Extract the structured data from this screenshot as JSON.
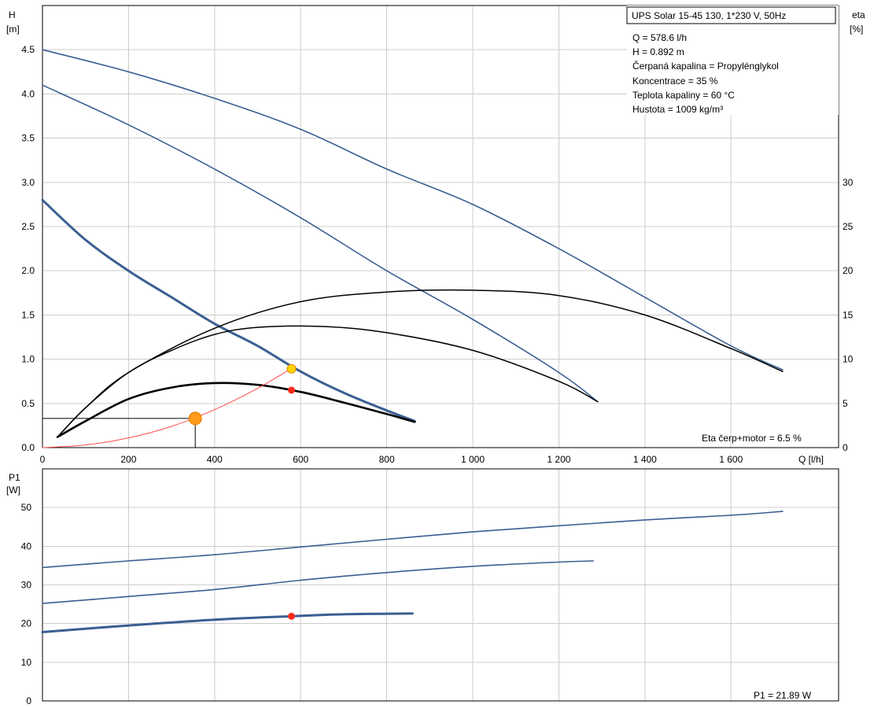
{
  "legend_box": {
    "title": "UPS Solar 15-45 130, 1*230 V, 50Hz",
    "lines": [
      "Q = 578.6 l/h",
      "H = 0.892 m",
      "Čerpaná kapalina = Propylénglykol",
      "Koncentrace = 35 %",
      "Teplota kapaliny = 60 °C",
      "Hustota = 1009 kg/m³"
    ]
  },
  "top_axes": {
    "y_label_line1": "H",
    "y_label_line2": "[m]",
    "y_right_label_line1": "eta",
    "y_right_label_line2": "[%]",
    "x_label": "Q [l/h]",
    "eta_note": "Eta čerp+motor = 6.5 %"
  },
  "bottom_axes": {
    "y_label_line1": "P1",
    "y_label_line2": "[W]",
    "p1_note": "P1 = 21.89 W"
  },
  "colors": {
    "head_curve": "#3a5f92",
    "eta_curve": "#000000",
    "system_curve": "#ff4c4c",
    "duty_point": "#ff2a1a",
    "yellow_point": "#ffd400",
    "orange_point": "#ff9a1a"
  },
  "chart_data": [
    {
      "type": "line",
      "xlim": [
        0,
        1850
      ],
      "ylim": [
        0,
        5.0
      ],
      "y2lim": [
        0,
        50
      ],
      "x_ticks": [
        0,
        200,
        400,
        600,
        800,
        1000,
        1200,
        1400,
        1600
      ],
      "x_tick_labels": [
        "0",
        "200",
        "400",
        "600",
        "800",
        "1 000",
        "1 200",
        "1 400",
        "1 600"
      ],
      "y_ticks": [
        0,
        0.5,
        1.0,
        1.5,
        2.0,
        2.5,
        3.0,
        3.5,
        4.0,
        4.5
      ],
      "y_tick_labels": [
        "0.0",
        "0.5",
        "1.0",
        "1.5",
        "2.0",
        "2.5",
        "3.0",
        "3.5",
        "4.0",
        "4.5"
      ],
      "y2_ticks": [
        0,
        5,
        10,
        15,
        20,
        25,
        30
      ],
      "y2_tick_labels": [
        "0",
        "5",
        "10",
        "15",
        "20",
        "25",
        "30"
      ],
      "grid": true,
      "series": [
        {
          "kind": "head",
          "axis": "left",
          "points": [
            [
              0,
              4.5
            ],
            [
              200,
              4.25
            ],
            [
              400,
              3.95
            ],
            [
              600,
              3.6
            ],
            [
              800,
              3.15
            ],
            [
              1000,
              2.75
            ],
            [
              1200,
              2.25
            ],
            [
              1400,
              1.7
            ],
            [
              1600,
              1.15
            ],
            [
              1720,
              0.88
            ]
          ]
        },
        {
          "kind": "head",
          "axis": "left",
          "points": [
            [
              0,
              4.1
            ],
            [
              200,
              3.65
            ],
            [
              400,
              3.15
            ],
            [
              600,
              2.6
            ],
            [
              800,
              2.0
            ],
            [
              1000,
              1.45
            ],
            [
              1200,
              0.85
            ],
            [
              1290,
              0.52
            ]
          ]
        },
        {
          "kind": "head",
          "axis": "left",
          "bold": true,
          "points": [
            [
              0,
              2.8
            ],
            [
              100,
              2.35
            ],
            [
              200,
              2.0
            ],
            [
              300,
              1.7
            ],
            [
              400,
              1.4
            ],
            [
              500,
              1.15
            ],
            [
              600,
              0.86
            ],
            [
              700,
              0.62
            ],
            [
              800,
              0.42
            ],
            [
              865,
              0.3
            ]
          ]
        },
        {
          "kind": "eta",
          "axis": "right",
          "points": [
            [
              35,
              1.2
            ],
            [
              100,
              4.5
            ],
            [
              200,
              8.5
            ],
            [
              400,
              13.5
            ],
            [
              600,
              16.5
            ],
            [
              800,
              17.6
            ],
            [
              1000,
              17.8
            ],
            [
              1200,
              17.2
            ],
            [
              1400,
              15.0
            ],
            [
              1600,
              11.2
            ],
            [
              1720,
              8.6
            ]
          ]
        },
        {
          "kind": "eta",
          "axis": "right",
          "points": [
            [
              35,
              1.2
            ],
            [
              100,
              4.5
            ],
            [
              200,
              8.5
            ],
            [
              300,
              11.0
            ],
            [
              400,
              12.8
            ],
            [
              500,
              13.6
            ],
            [
              650,
              13.7
            ],
            [
              800,
              13.0
            ],
            [
              1000,
              11.0
            ],
            [
              1200,
              7.5
            ],
            [
              1290,
              5.2
            ]
          ]
        },
        {
          "kind": "eta",
          "axis": "right",
          "bold": true,
          "points": [
            [
              35,
              1.2
            ],
            [
              100,
              3.0
            ],
            [
              200,
              5.5
            ],
            [
              300,
              6.8
            ],
            [
              400,
              7.3
            ],
            [
              500,
              7.1
            ],
            [
              600,
              6.3
            ],
            [
              700,
              5.1
            ],
            [
              800,
              3.8
            ],
            [
              865,
              2.9
            ]
          ]
        },
        {
          "kind": "system",
          "axis": "left",
          "points": [
            [
              0,
              0.0
            ],
            [
              100,
              0.03
            ],
            [
              200,
              0.11
            ],
            [
              300,
              0.24
            ],
            [
              400,
              0.43
            ],
            [
              500,
              0.67
            ],
            [
              580,
              0.9
            ]
          ]
        }
      ],
      "duty_point": {
        "q": 578.6,
        "h": 0.892,
        "eta": 6.5
      },
      "operating_marker": {
        "q": 355,
        "h": 0.33
      }
    },
    {
      "type": "line",
      "xlim": [
        0,
        1850
      ],
      "ylim": [
        0,
        60
      ],
      "y_ticks": [
        0,
        10,
        20,
        30,
        40,
        50
      ],
      "y_tick_labels": [
        "0",
        "10",
        "20",
        "30",
        "40",
        "50"
      ],
      "grid": true,
      "series": [
        {
          "kind": "power",
          "points": [
            [
              0,
              34.5
            ],
            [
              200,
              36.2
            ],
            [
              400,
              37.8
            ],
            [
              600,
              39.8
            ],
            [
              800,
              41.8
            ],
            [
              1000,
              43.7
            ],
            [
              1200,
              45.3
            ],
            [
              1400,
              46.8
            ],
            [
              1600,
              48.0
            ],
            [
              1720,
              49.0
            ]
          ]
        },
        {
          "kind": "power",
          "points": [
            [
              0,
              25.2
            ],
            [
              200,
              27.0
            ],
            [
              400,
              28.8
            ],
            [
              600,
              31.2
            ],
            [
              800,
              33.2
            ],
            [
              1000,
              34.8
            ],
            [
              1200,
              35.9
            ],
            [
              1280,
              36.2
            ]
          ]
        },
        {
          "kind": "power",
          "bold": true,
          "points": [
            [
              0,
              17.8
            ],
            [
              200,
              19.5
            ],
            [
              400,
              21.0
            ],
            [
              578.6,
              21.89
            ],
            [
              700,
              22.4
            ],
            [
              860,
              22.6
            ]
          ]
        }
      ],
      "duty_point": {
        "q": 578.6,
        "p1": 21.89
      }
    }
  ]
}
